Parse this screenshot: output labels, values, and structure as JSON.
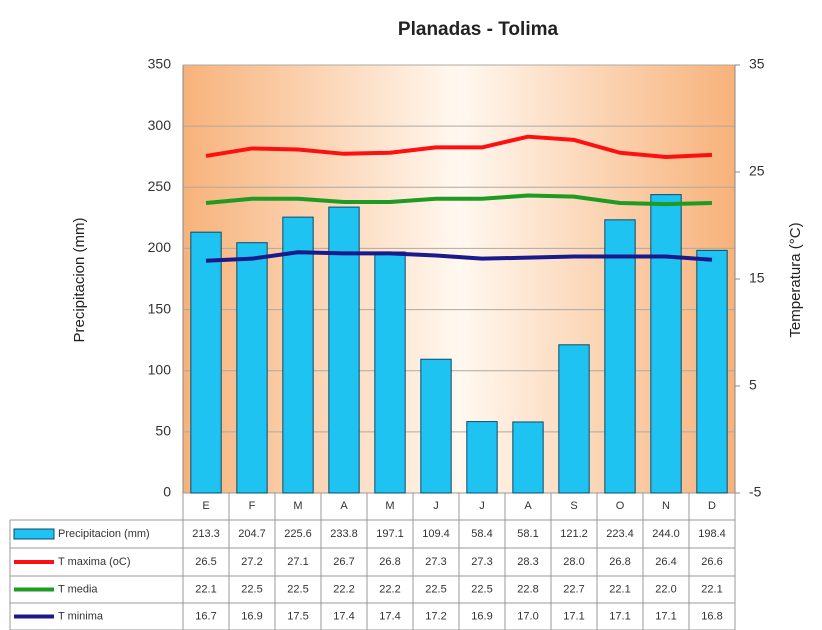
{
  "chart_data": {
    "type": "combo",
    "title": "Planadas - Tolima",
    "ylabel": "Precipitacion (mm)",
    "y2label": "Temperatura (°C)",
    "categories": [
      "E",
      "F",
      "M",
      "A",
      "M",
      "J",
      "J",
      "A",
      "S",
      "O",
      "N",
      "D"
    ],
    "ylim": [
      0,
      350
    ],
    "yticks": [
      0,
      50,
      100,
      150,
      200,
      250,
      300,
      350
    ],
    "y2lim": [
      -5,
      35
    ],
    "y2ticks": [
      -5,
      5,
      15,
      25,
      35
    ],
    "grid": true,
    "series": [
      {
        "name": "Precipitacion (mm)",
        "type": "bar",
        "color": "#1ec3f2",
        "values": [
          213.3,
          204.7,
          225.6,
          233.8,
          197.1,
          109.4,
          58.4,
          58.1,
          121.2,
          223.4,
          244.0,
          198.4
        ],
        "value_labels": [
          "213.3",
          "204.7",
          "225.6",
          "233.8",
          "197.1",
          "109.4",
          "58.4",
          "58.1",
          "121.2",
          "223.4",
          "244.0",
          "198.4"
        ]
      },
      {
        "name": "T maxima (oC)",
        "type": "line",
        "axis": "y2",
        "color": "#ff1010",
        "values": [
          26.5,
          27.2,
          27.1,
          26.7,
          26.8,
          27.3,
          27.3,
          28.3,
          28.0,
          26.8,
          26.4,
          26.6
        ],
        "value_labels": [
          "26.5",
          "27.2",
          "27.1",
          "26.7",
          "26.8",
          "27.3",
          "27.3",
          "28.3",
          "28.0",
          "26.8",
          "26.4",
          "26.6"
        ]
      },
      {
        "name": "T media",
        "type": "line",
        "axis": "y2",
        "color": "#1f9a22",
        "values": [
          22.1,
          22.5,
          22.5,
          22.2,
          22.2,
          22.5,
          22.5,
          22.8,
          22.7,
          22.1,
          22.0,
          22.1
        ],
        "value_labels": [
          "22.1",
          "22.5",
          "22.5",
          "22.2",
          "22.2",
          "22.5",
          "22.5",
          "22.8",
          "22.7",
          "22.1",
          "22.0",
          "22.1"
        ]
      },
      {
        "name": "T minima",
        "type": "line",
        "axis": "y2",
        "color": "#1a1a8c",
        "values": [
          16.7,
          16.9,
          17.5,
          17.4,
          17.4,
          17.2,
          16.9,
          17.0,
          17.1,
          17.1,
          17.1,
          16.8
        ],
        "value_labels": [
          "16.7",
          "16.9",
          "17.5",
          "17.4",
          "17.4",
          "17.2",
          "16.9",
          "17.0",
          "17.1",
          "17.1",
          "17.1",
          "16.8"
        ]
      }
    ]
  }
}
